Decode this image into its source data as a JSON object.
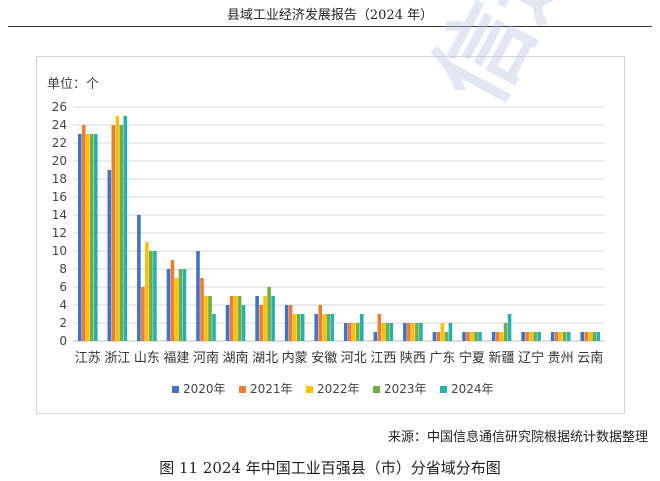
{
  "header": {
    "title": "县域工业经济发展报告（2024 年）"
  },
  "watermark": "信通院",
  "source": "来源：中国信息通信研究院根据统计数据整理",
  "caption": "图  11 2024 年中国工业百强县（市）分省域分布图",
  "chart_data": {
    "type": "bar",
    "ylabel": "单位：个",
    "ylim": [
      0,
      26
    ],
    "yticks": [
      0,
      2,
      4,
      6,
      8,
      10,
      12,
      14,
      16,
      18,
      20,
      22,
      24,
      26
    ],
    "grid": true,
    "legend_position": "bottom",
    "categories": [
      "江苏",
      "浙江",
      "山东",
      "福建",
      "河南",
      "湖南",
      "湖北",
      "内蒙",
      "安徽",
      "河北",
      "江西",
      "陕西",
      "广东",
      "宁夏",
      "新疆",
      "辽宁",
      "贵州",
      "云南"
    ],
    "series": [
      {
        "name": "2020年",
        "color": "#4472c4",
        "values": [
          23,
          19,
          14,
          8,
          10,
          4,
          5,
          4,
          3,
          2,
          1,
          2,
          1,
          1,
          1,
          1,
          1,
          1
        ]
      },
      {
        "name": "2021年",
        "color": "#ed7d31",
        "values": [
          24,
          24,
          6,
          9,
          7,
          5,
          4,
          4,
          4,
          2,
          3,
          2,
          1,
          1,
          1,
          1,
          1,
          1
        ]
      },
      {
        "name": "2022年",
        "color": "#ffc000",
        "values": [
          23,
          25,
          11,
          7,
          5,
          5,
          5,
          3,
          3,
          2,
          2,
          2,
          2,
          1,
          1,
          1,
          1,
          1
        ]
      },
      {
        "name": "2023年",
        "color": "#70ad47",
        "values": [
          23,
          24,
          10,
          8,
          5,
          5,
          6,
          3,
          3,
          2,
          2,
          2,
          1,
          1,
          2,
          1,
          1,
          1
        ]
      },
      {
        "name": "2024年",
        "color": "#26b0b0",
        "values": [
          23,
          25,
          10,
          8,
          3,
          4,
          5,
          3,
          3,
          3,
          2,
          2,
          2,
          1,
          3,
          1,
          1,
          1
        ]
      }
    ]
  }
}
